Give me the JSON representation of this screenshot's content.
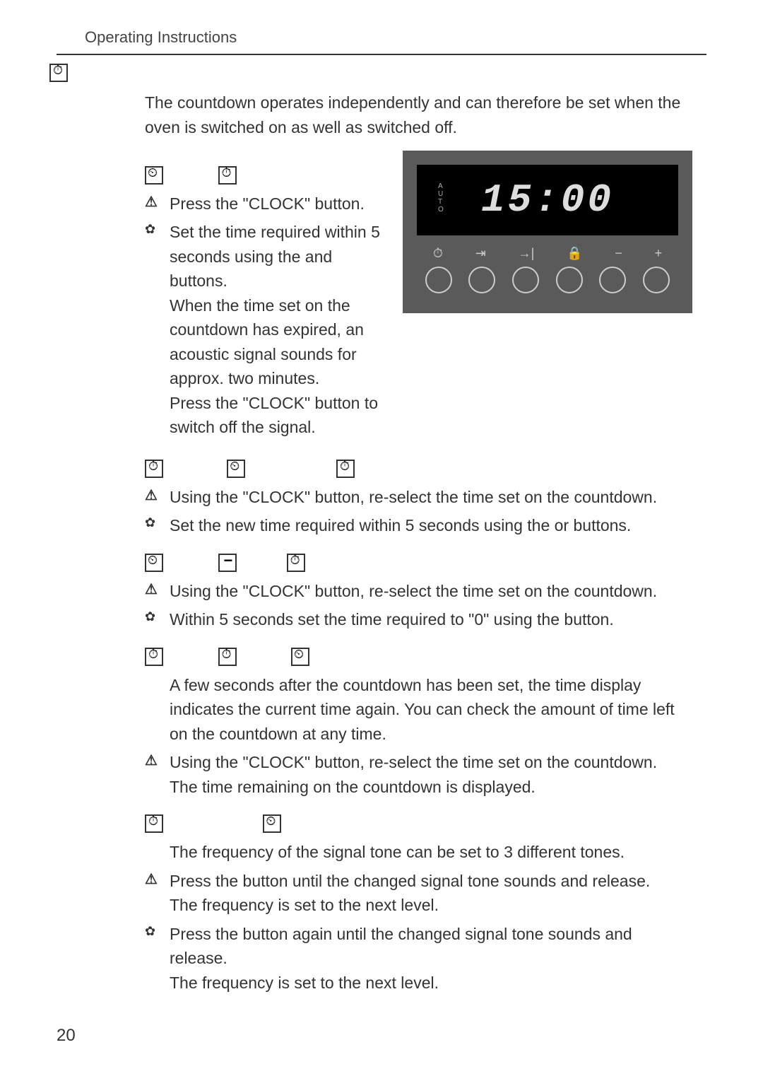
{
  "header": "Operating Instructions",
  "pageNumber": "20",
  "intro": "The countdown operates independently and can therefore be set when the oven is switched on as well as switched off.",
  "display": {
    "autoLabel": [
      "A",
      "U",
      "T",
      "O"
    ],
    "time": "15:00",
    "iconRow": [
      "⏱",
      "⇥",
      "→|",
      "🔒",
      "−",
      "+"
    ]
  },
  "sections": {
    "s1": {
      "step1": "Press the \"CLOCK\"      button.",
      "step2a": "Set the time required within 5 seconds using the     and      buttons.",
      "step2b": "When the time set on the countdown has expired, an acoustic signal sounds for approx. two minutes.",
      "step2c": "Press the \"CLOCK\"      button to switch off the signal."
    },
    "s2": {
      "step1": "Using the \"CLOCK\"      button, re-select the time set on the countdown.",
      "step2": "Set the new time required within 5 seconds using the     or      buttons."
    },
    "s3": {
      "step1": "Using the \"CLOCK\"      button, re-select the time set on the countdown.",
      "step2": "Within 5 seconds set the time required to \"0\" using the      button."
    },
    "s4": {
      "intro": "A few seconds after the countdown has been set, the time display indicates the current time again. You can check the amount of time left on the countdown at any time.",
      "step1a": "Using the \"CLOCK\"      button, re-select the time set on the countdown.",
      "step1b": "The time remaining on the countdown is displayed."
    },
    "s5": {
      "intro": "The frequency of the signal tone can be set to 3 different tones.",
      "step1a": "Press the      button until the changed signal tone sounds and release.",
      "step1b": "The frequency is set to the next level.",
      "step2a": "Press the      button again until the changed signal tone sounds and release.",
      "step2b": "The frequency is set to the next level."
    }
  }
}
